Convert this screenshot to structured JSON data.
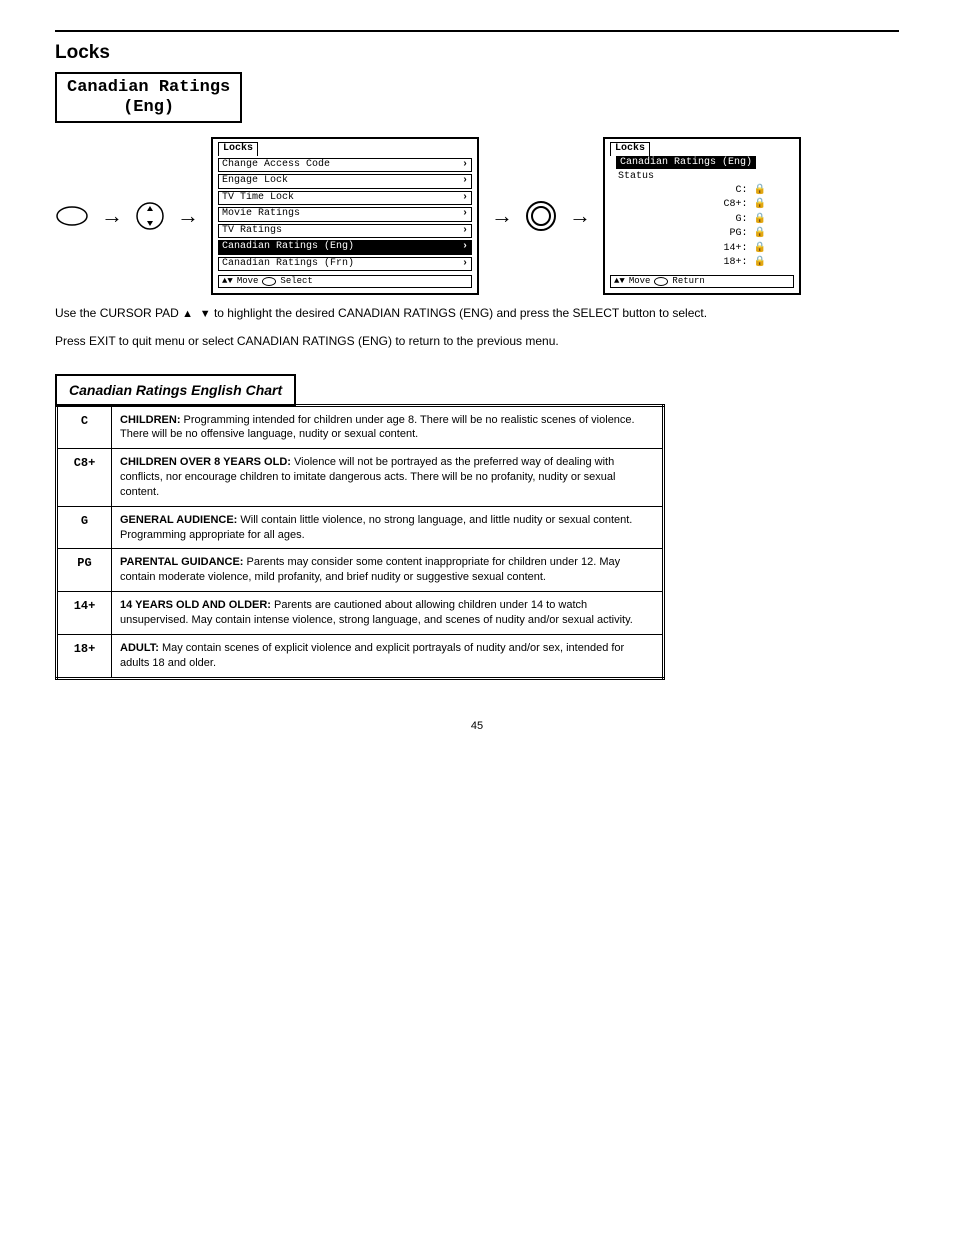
{
  "header": {
    "title": "Locks"
  },
  "tab": {
    "l1": "Canadian Ratings",
    "l2": "(Eng)"
  },
  "menuA": {
    "tab": "Locks",
    "items": [
      "Change Access Code",
      "Engage Lock",
      "TV Time Lock",
      "Movie Ratings",
      "TV Ratings",
      "Canadian Ratings (Eng)",
      "Canadian Ratings (Frn)"
    ],
    "selected_index": 5,
    "footer_move": "Move",
    "footer_action": "Select"
  },
  "menuB": {
    "tab": "Locks",
    "subtab": "Canadian Ratings (Eng)",
    "status_label": "Status",
    "rows": [
      {
        "label": "C:",
        "locked": true
      },
      {
        "label": "C8+:",
        "locked": true
      },
      {
        "label": "G:",
        "locked": true
      },
      {
        "label": "PG:",
        "locked": true
      },
      {
        "label": "14+:",
        "locked": true
      },
      {
        "label": "18+:",
        "locked": true
      }
    ],
    "footer_move": "Move",
    "footer_action": "Return"
  },
  "instructions": {
    "line1_a": "Use the CURSOR PAD ",
    "line1_b": " to highlight the desired CANADIAN RATINGS (ENG) and press the SELECT button to select.",
    "line2": "Press EXIT to quit menu or select CANADIAN RATINGS (ENG) to return to the previous menu."
  },
  "table": {
    "title": "Canadian Ratings English Chart",
    "rows": [
      {
        "code": "C",
        "desc": "<b>CHILDREN:</b> Programming intended for children under age 8. There will be no realistic scenes of violence. There will be no offensive language, nudity or sexual content."
      },
      {
        "code": "C8+",
        "desc": "<b>CHILDREN OVER 8 YEARS OLD:</b> Violence will not be portrayed as the preferred way of dealing with conflicts, nor encourage children to imitate dangerous acts. There will be no profanity, nudity or sexual content."
      },
      {
        "code": "G",
        "desc": "<b>GENERAL AUDIENCE:</b> Will contain little violence, no strong language, and little nudity or sexual content. Programming appropriate for all ages."
      },
      {
        "code": "PG",
        "desc": "<b>PARENTAL GUIDANCE:</b> Parents may consider some content inappropriate for children under 12. May contain moderate violence, mild profanity, and brief nudity or suggestive sexual content."
      },
      {
        "code": "14+",
        "desc": "<b>14 YEARS OLD AND OLDER:</b> Parents are cautioned about allowing children under 14 to watch unsupervised. May contain intense violence, strong language, and scenes of nudity and/or sexual activity."
      },
      {
        "code": "18+",
        "desc": "<b>ADULT:</b> May contain scenes of explicit violence and explicit portrayals of nudity and/or sex, intended for adults 18 and older."
      }
    ]
  },
  "page_number": "45"
}
